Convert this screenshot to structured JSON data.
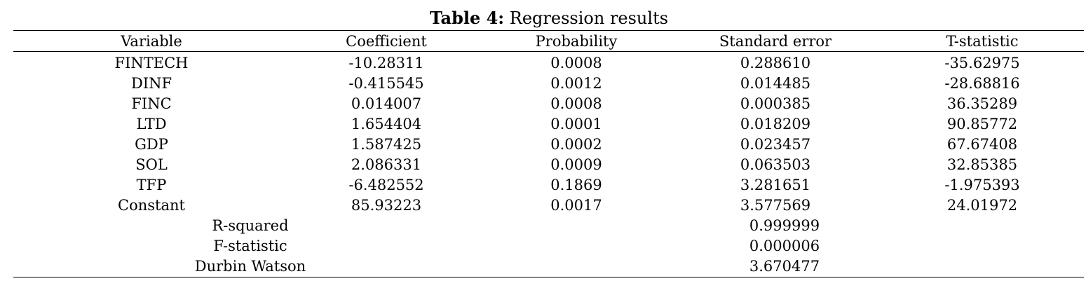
{
  "caption": {
    "label": "Table 4:",
    "title": " Regression results"
  },
  "columns": [
    "Variable",
    "Coefficient",
    "Probability",
    "Standard error",
    "T-statistic"
  ],
  "rows": [
    [
      "FINTECH",
      "-10.28311",
      "0.0008",
      "0.288610",
      "-35.62975"
    ],
    [
      "DINF",
      "-0.415545",
      "0.0012",
      "0.014485",
      "-28.68816"
    ],
    [
      "FINC",
      "0.014007",
      "0.0008",
      "0.000385",
      "36.35289"
    ],
    [
      "LTD",
      "1.654404",
      "0.0001",
      "0.018209",
      "90.85772"
    ],
    [
      "GDP",
      "1.587425",
      "0.0002",
      "0.023457",
      "67.67408"
    ],
    [
      "SOL",
      "2.086331",
      "0.0009",
      "0.063503",
      "32.85385"
    ],
    [
      "TFP",
      "-6.482552",
      "0.1869",
      "3.281651",
      "-1.975393"
    ],
    [
      "Constant",
      "85.93223",
      "0.0017",
      "3.577569",
      "24.01972"
    ]
  ],
  "stats": [
    {
      "label": "R-squared",
      "value": "0.999999"
    },
    {
      "label": "F-statistic",
      "value": "0.000006"
    },
    {
      "label": "Durbin Watson",
      "value": "3.670477"
    }
  ]
}
